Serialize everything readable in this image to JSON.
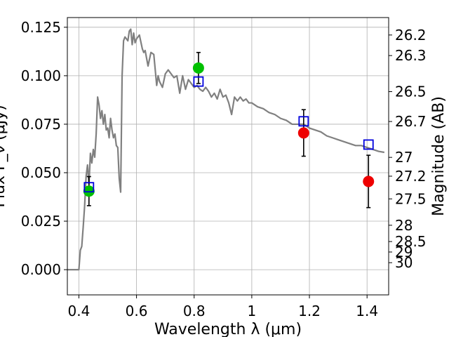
{
  "chart_data": {
    "type": "line",
    "xlabel": "Wavelength  λ (μm)",
    "ylabel": "Flux  F_ν (μJy)",
    "y2label": "Magnitude (AB)",
    "xlim": [
      0.36,
      1.475
    ],
    "ylim": [
      -0.013,
      0.13
    ],
    "xticks": [
      0.4,
      0.6,
      0.8,
      1.0,
      1.2,
      1.4
    ],
    "xtick_labels": [
      "0.4",
      "0.6",
      "0.8",
      "1",
      "1.2",
      "1.4"
    ],
    "yticks": [
      0.0,
      0.025,
      0.05,
      0.075,
      0.1,
      0.125
    ],
    "ytick_labels": [
      "0.000",
      "0.025",
      "0.050",
      "0.075",
      "0.100",
      "0.125"
    ],
    "y2ticks": [
      {
        "label": "26.2",
        "flux": 0.121
      },
      {
        "label": "26.3",
        "flux": 0.1104
      },
      {
        "label": "26.5",
        "flux": 0.0918
      },
      {
        "label": "26.7",
        "flux": 0.0764
      },
      {
        "label": "27",
        "flux": 0.0579
      },
      {
        "label": "27.2",
        "flux": 0.0482
      },
      {
        "label": "27.5",
        "flux": 0.0365
      },
      {
        "label": "28",
        "flux": 0.0229
      },
      {
        "label": "28.5",
        "flux": 0.0145
      },
      {
        "label": "29",
        "flux": 0.0091
      },
      {
        "label": "30",
        "flux": 0.0036
      }
    ],
    "grid": true,
    "series": [
      {
        "kind": "line",
        "color": "#808080",
        "x": [
          0.36,
          0.375,
          0.39,
          0.4,
          0.405,
          0.41,
          0.415,
          0.42,
          0.425,
          0.43,
          0.435,
          0.44,
          0.445,
          0.45,
          0.455,
          0.46,
          0.465,
          0.47,
          0.475,
          0.48,
          0.485,
          0.49,
          0.495,
          0.5,
          0.505,
          0.51,
          0.515,
          0.52,
          0.525,
          0.53,
          0.535,
          0.54,
          0.545,
          0.55,
          0.555,
          0.56,
          0.57,
          0.575,
          0.58,
          0.585,
          0.59,
          0.595,
          0.6,
          0.61,
          0.62,
          0.625,
          0.63,
          0.635,
          0.64,
          0.65,
          0.66,
          0.67,
          0.675,
          0.68,
          0.69,
          0.7,
          0.71,
          0.72,
          0.73,
          0.74,
          0.75,
          0.76,
          0.77,
          0.78,
          0.79,
          0.8,
          0.81,
          0.82,
          0.83,
          0.84,
          0.85,
          0.86,
          0.87,
          0.88,
          0.89,
          0.9,
          0.91,
          0.92,
          0.93,
          0.94,
          0.95,
          0.96,
          0.97,
          0.98,
          0.99,
          1.0,
          1.02,
          1.04,
          1.06,
          1.08,
          1.1,
          1.12,
          1.14,
          1.16,
          1.18,
          1.2,
          1.22,
          1.24,
          1.26,
          1.28,
          1.3,
          1.32,
          1.34,
          1.36,
          1.38,
          1.4,
          1.42,
          1.44,
          1.46
        ],
        "y": [
          0.0,
          0.0,
          0.0,
          0.0,
          0.01,
          0.012,
          0.022,
          0.033,
          0.048,
          0.054,
          0.044,
          0.06,
          0.055,
          0.062,
          0.058,
          0.07,
          0.089,
          0.085,
          0.078,
          0.082,
          0.075,
          0.08,
          0.072,
          0.073,
          0.068,
          0.078,
          0.072,
          0.068,
          0.07,
          0.064,
          0.063,
          0.047,
          0.04,
          0.1,
          0.118,
          0.12,
          0.118,
          0.123,
          0.124,
          0.116,
          0.122,
          0.117,
          0.119,
          0.121,
          0.114,
          0.112,
          0.113,
          0.109,
          0.105,
          0.112,
          0.111,
          0.095,
          0.1,
          0.097,
          0.094,
          0.101,
          0.103,
          0.101,
          0.099,
          0.1,
          0.091,
          0.1,
          0.093,
          0.098,
          0.096,
          0.094,
          0.095,
          0.093,
          0.092,
          0.094,
          0.092,
          0.089,
          0.091,
          0.088,
          0.093,
          0.089,
          0.09,
          0.086,
          0.08,
          0.089,
          0.087,
          0.089,
          0.087,
          0.088,
          0.086,
          0.086,
          0.084,
          0.083,
          0.081,
          0.08,
          0.078,
          0.077,
          0.075,
          0.075,
          0.075,
          0.073,
          0.072,
          0.071,
          0.069,
          0.068,
          0.067,
          0.066,
          0.065,
          0.064,
          0.064,
          0.063,
          0.062,
          0.061,
          0.0605
        ]
      },
      {
        "kind": "points",
        "marker": "circle",
        "color": "#00c000",
        "x": [
          0.435,
          0.815
        ],
        "y": [
          0.0405,
          0.104
        ],
        "yerr": [
          0.0075,
          0.008
        ]
      },
      {
        "kind": "points",
        "marker": "circle",
        "color": "#ee0000",
        "x": [
          1.18,
          1.405
        ],
        "y": [
          0.0705,
          0.0455
        ],
        "yerr": [
          0.012,
          0.0135
        ]
      },
      {
        "kind": "points",
        "marker": "square-open",
        "color": "#0000dd",
        "x": [
          0.435,
          0.815,
          1.18,
          1.405
        ],
        "y": [
          0.0425,
          0.097,
          0.0765,
          0.0645
        ]
      }
    ]
  }
}
